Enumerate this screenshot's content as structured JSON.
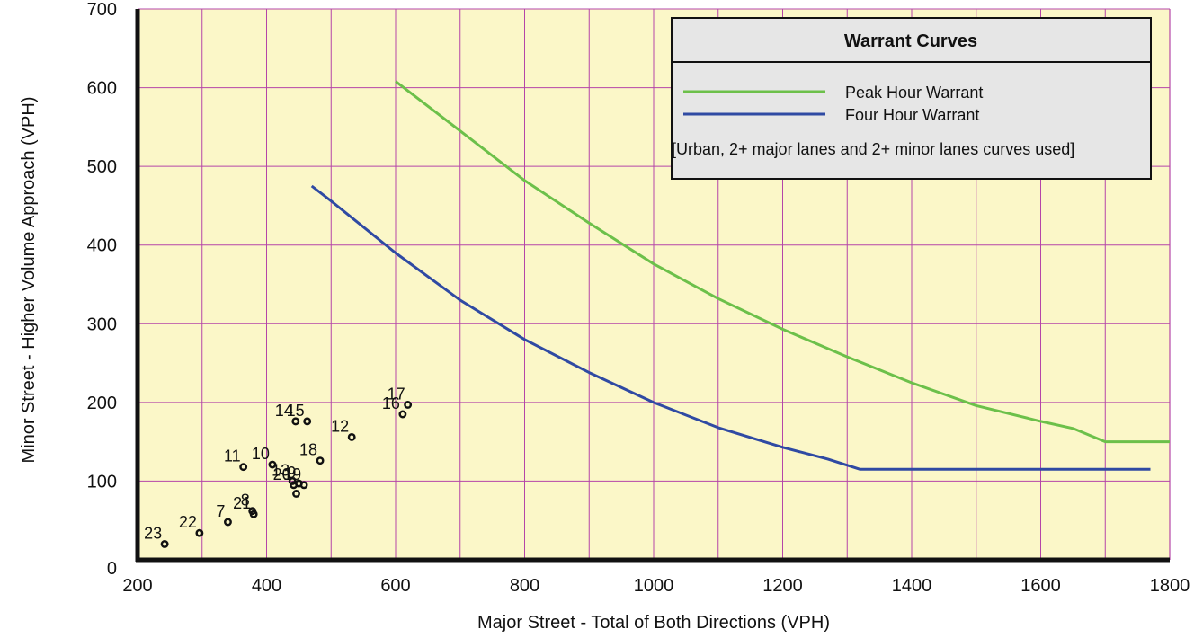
{
  "chart_data": {
    "type": "scatter",
    "xlabel": "Major Street - Total of Both Directions (VPH)",
    "ylabel": "Minor Street - Higher Volume Approach (VPH)",
    "xlim": [
      200,
      1800
    ],
    "ylim": [
      0,
      700
    ],
    "x_ticks": [
      "200",
      "400",
      "600",
      "800",
      "1000",
      "1200",
      "1400",
      "1600",
      "1800"
    ],
    "y_ticks": [
      "0",
      "100",
      "200",
      "300",
      "400",
      "500",
      "600",
      "700"
    ],
    "grid": true,
    "x_minor_step": 100,
    "colors": {
      "plot_background": "#fbf7c8",
      "grid": "#b545a8",
      "peak_hour": "#6cc04a",
      "four_hour": "#2f4aa3",
      "points": "#111111",
      "legend_background": "#e6e6e6"
    },
    "legend": {
      "title": "Warrant Curves",
      "placement": "top-right",
      "note": "[Urban,  2+ major lanes and 2+ minor lanes curves used]"
    },
    "series": [
      {
        "name": "Peak Hour Warrant",
        "x": [
          600,
          700,
          800,
          900,
          1000,
          1100,
          1200,
          1300,
          1400,
          1500,
          1600,
          1650,
          1700,
          1800
        ],
        "y": [
          608,
          545,
          482,
          428,
          376,
          332,
          293,
          258,
          225,
          196,
          176,
          167,
          150,
          150
        ]
      },
      {
        "name": "Four Hour Warrant",
        "x": [
          470,
          500,
          600,
          700,
          800,
          900,
          1000,
          1100,
          1200,
          1270,
          1320,
          1770
        ],
        "y": [
          475,
          456,
          390,
          330,
          280,
          238,
          200,
          168,
          143,
          128,
          115,
          115
        ]
      }
    ],
    "points": [
      {
        "label": "23",
        "x": 242,
        "y": 20
      },
      {
        "label": "22",
        "x": 296,
        "y": 34
      },
      {
        "label": "7",
        "x": 340,
        "y": 48
      },
      {
        "label": "8",
        "x": 378,
        "y": 62
      },
      {
        "label": "21",
        "x": 380,
        "y": 58
      },
      {
        "label": "11",
        "x": 364,
        "y": 118
      },
      {
        "label": "10",
        "x": 409,
        "y": 121
      },
      {
        "label": "14",
        "x": 445,
        "y": 176
      },
      {
        "label": "15",
        "x": 463,
        "y": 176
      },
      {
        "label": "13",
        "x": 440,
        "y": 100
      },
      {
        "label": "20",
        "x": 442,
        "y": 95
      },
      {
        "label": "9",
        "x": 450,
        "y": 97
      },
      {
        "label": "19",
        "x": 458,
        "y": 95
      },
      {
        "label": "",
        "x": 446,
        "y": 84
      },
      {
        "label": "18",
        "x": 483,
        "y": 126
      },
      {
        "label": "12",
        "x": 532,
        "y": 156
      },
      {
        "label": "16",
        "x": 611,
        "y": 185
      },
      {
        "label": "17",
        "x": 619,
        "y": 197
      }
    ]
  }
}
